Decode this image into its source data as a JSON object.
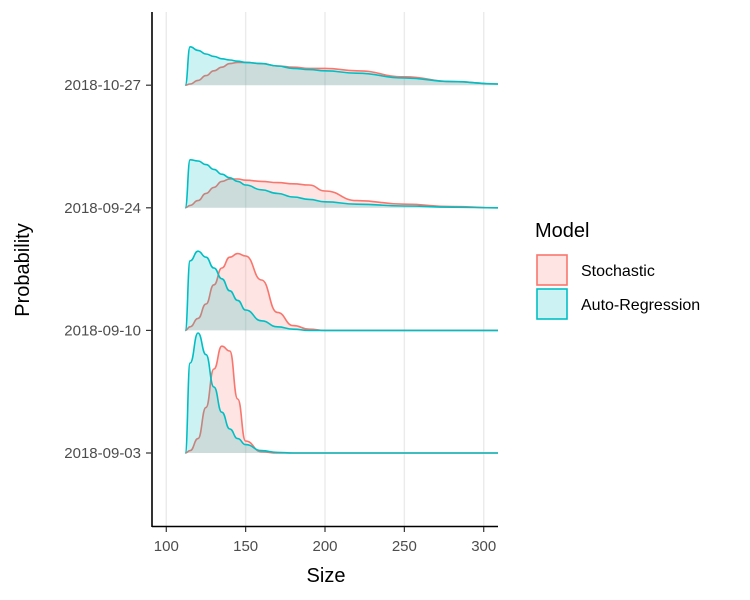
{
  "chart_data": {
    "type": "ridgeline-density",
    "title": "",
    "xlabel": "Size",
    "ylabel": "Probability",
    "xlim": [
      91,
      309
    ],
    "x_ticks": [
      100,
      150,
      200,
      250,
      300
    ],
    "x_tick_labels": [
      "100",
      "150",
      "200",
      "250",
      "300"
    ],
    "grid": "vertical major lines",
    "legend": {
      "title": "Model",
      "position": "right",
      "entries": [
        {
          "name": "Stochastic",
          "line": "#F8766D",
          "fill": "#FFE0DF"
        },
        {
          "name": "Auto-Regression",
          "line": "#00BFC4",
          "fill": "#CCF2F3"
        }
      ]
    },
    "categories": [
      "2018-09-03",
      "2018-09-10",
      "2018-09-24",
      "2018-10-27"
    ],
    "x": [
      112,
      115,
      120,
      125,
      130,
      135,
      140,
      145,
      150,
      160,
      170,
      180,
      190,
      200,
      220,
      250,
      280,
      309
    ],
    "ridges": [
      {
        "date": "2018-09-03",
        "series": [
          {
            "name": "Stochastic",
            "values": [
              0,
              0.02,
              0.12,
              0.38,
              0.7,
              0.89,
              0.85,
              0.45,
              0.1,
              0.01,
              0,
              0,
              0,
              0,
              0,
              0,
              0,
              0
            ]
          },
          {
            "name": "Auto-Regression",
            "values": [
              0,
              0.75,
              1.0,
              0.82,
              0.55,
              0.34,
              0.2,
              0.12,
              0.07,
              0.02,
              0.005,
              0,
              0,
              0,
              0,
              0,
              0,
              0
            ]
          }
        ]
      },
      {
        "date": "2018-09-10",
        "series": [
          {
            "name": "Stochastic",
            "values": [
              0,
              0.03,
              0.1,
              0.22,
              0.38,
              0.52,
              0.61,
              0.64,
              0.62,
              0.42,
              0.15,
              0.04,
              0.01,
              0,
              0,
              0,
              0,
              0
            ]
          },
          {
            "name": "Auto-Regression",
            "values": [
              0,
              0.58,
              0.66,
              0.61,
              0.52,
              0.43,
              0.33,
              0.25,
              0.17,
              0.08,
              0.03,
              0.01,
              0,
              0,
              0,
              0,
              0,
              0
            ]
          }
        ]
      },
      {
        "date": "2018-09-24",
        "series": [
          {
            "name": "Stochastic",
            "values": [
              0,
              0.02,
              0.06,
              0.12,
              0.17,
              0.22,
              0.24,
              0.24,
              0.23,
              0.22,
              0.21,
              0.2,
              0.19,
              0.14,
              0.06,
              0.03,
              0.01,
              0
            ]
          },
          {
            "name": "Auto-Regression",
            "values": [
              0,
              0.4,
              0.39,
              0.36,
              0.32,
              0.28,
              0.25,
              0.22,
              0.19,
              0.15,
              0.12,
              0.09,
              0.07,
              0.05,
              0.03,
              0.015,
              0.005,
              0
            ]
          }
        ]
      },
      {
        "date": "2018-10-27",
        "series": [
          {
            "name": "Stochastic",
            "values": [
              0,
              0.01,
              0.04,
              0.08,
              0.12,
              0.15,
              0.18,
              0.19,
              0.19,
              0.18,
              0.16,
              0.15,
              0.14,
              0.14,
              0.12,
              0.07,
              0.03,
              0.01
            ]
          },
          {
            "name": "Auto-Regression",
            "values": [
              0,
              0.32,
              0.29,
              0.26,
              0.24,
              0.22,
              0.21,
              0.2,
              0.19,
              0.18,
              0.16,
              0.14,
              0.13,
              0.12,
              0.1,
              0.06,
              0.03,
              0.01
            ]
          }
        ]
      }
    ]
  }
}
